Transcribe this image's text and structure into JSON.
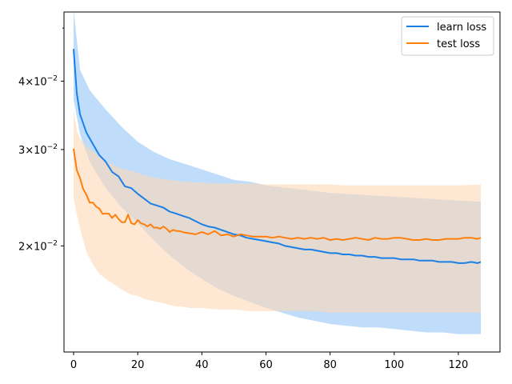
{
  "chart_data": {
    "type": "line",
    "y_scale": "log",
    "grid": false,
    "legend_placement": "top-right",
    "xlim": [
      -3,
      133
    ],
    "ylim": [
      0.0128,
      0.0535
    ],
    "x_ticks": [
      0,
      20,
      40,
      60,
      80,
      100,
      120
    ],
    "x_tick_labels": [
      "0",
      "20",
      "40",
      "60",
      "80",
      "100",
      "120"
    ],
    "y_major_ticks": [
      0.02,
      0.03,
      0.04
    ],
    "y_tick_labels": [
      {
        "mantissa": "2",
        "base": "10",
        "exp": "−2"
      },
      {
        "mantissa": "3",
        "base": "10",
        "exp": "−2"
      },
      {
        "mantissa": "4",
        "base": "10",
        "exp": "−2"
      }
    ],
    "y_minor_ticks": [
      0.05
    ],
    "series": [
      {
        "name": "learn loss",
        "color": "#1a80e6",
        "band_color": "#a9d2fa",
        "mean": [
          [
            0,
            0.0458
          ],
          [
            1,
            0.038
          ],
          [
            2,
            0.0348
          ],
          [
            4,
            0.0322
          ],
          [
            6,
            0.0307
          ],
          [
            8,
            0.0293
          ],
          [
            10,
            0.0285
          ],
          [
            12,
            0.0273
          ],
          [
            14,
            0.0268
          ],
          [
            16,
            0.0257
          ],
          [
            18,
            0.0255
          ],
          [
            20,
            0.0249
          ],
          [
            22,
            0.0244
          ],
          [
            24,
            0.0239
          ],
          [
            26,
            0.0237
          ],
          [
            28,
            0.0235
          ],
          [
            30,
            0.0231
          ],
          [
            32,
            0.0229
          ],
          [
            34,
            0.0227
          ],
          [
            36,
            0.0225
          ],
          [
            38,
            0.0222
          ],
          [
            40,
            0.0219
          ],
          [
            42,
            0.0217
          ],
          [
            44,
            0.0216
          ],
          [
            46,
            0.0214
          ],
          [
            48,
            0.0212
          ],
          [
            50,
            0.021
          ],
          [
            52,
            0.0209
          ],
          [
            54,
            0.0207
          ],
          [
            56,
            0.0206
          ],
          [
            58,
            0.0205
          ],
          [
            60,
            0.0204
          ],
          [
            62,
            0.0203
          ],
          [
            64,
            0.0202
          ],
          [
            66,
            0.02
          ],
          [
            68,
            0.0199
          ],
          [
            70,
            0.0198
          ],
          [
            72,
            0.0197
          ],
          [
            74,
            0.0197
          ],
          [
            76,
            0.0196
          ],
          [
            78,
            0.0195
          ],
          [
            80,
            0.0194
          ],
          [
            82,
            0.0194
          ],
          [
            84,
            0.0193
          ],
          [
            86,
            0.0193
          ],
          [
            88,
            0.0192
          ],
          [
            90,
            0.0192
          ],
          [
            92,
            0.0191
          ],
          [
            94,
            0.0191
          ],
          [
            96,
            0.019
          ],
          [
            98,
            0.019
          ],
          [
            100,
            0.019
          ],
          [
            102,
            0.0189
          ],
          [
            104,
            0.0189
          ],
          [
            106,
            0.0189
          ],
          [
            108,
            0.0188
          ],
          [
            110,
            0.0188
          ],
          [
            112,
            0.0188
          ],
          [
            114,
            0.0187
          ],
          [
            116,
            0.0187
          ],
          [
            118,
            0.0187
          ],
          [
            120,
            0.0186
          ],
          [
            122,
            0.0186
          ],
          [
            124,
            0.0187
          ],
          [
            126,
            0.0186
          ],
          [
            127,
            0.0187
          ]
        ],
        "upper": [
          [
            0,
            0.054
          ],
          [
            2,
            0.042
          ],
          [
            5,
            0.0385
          ],
          [
            10,
            0.0355
          ],
          [
            15,
            0.033
          ],
          [
            20,
            0.031
          ],
          [
            25,
            0.0297
          ],
          [
            30,
            0.0288
          ],
          [
            35,
            0.0282
          ],
          [
            40,
            0.0276
          ],
          [
            45,
            0.027
          ],
          [
            50,
            0.0264
          ],
          [
            55,
            0.0262
          ],
          [
            60,
            0.0258
          ],
          [
            65,
            0.0256
          ],
          [
            70,
            0.0254
          ],
          [
            75,
            0.0252
          ],
          [
            80,
            0.025
          ],
          [
            85,
            0.0249
          ],
          [
            90,
            0.0248
          ],
          [
            95,
            0.0247
          ],
          [
            100,
            0.0246
          ],
          [
            105,
            0.0245
          ],
          [
            110,
            0.0244
          ],
          [
            115,
            0.0243
          ],
          [
            120,
            0.0242
          ],
          [
            127,
            0.0241
          ]
        ],
        "lower": [
          [
            0,
            0.037
          ],
          [
            2,
            0.032
          ],
          [
            5,
            0.0285
          ],
          [
            10,
            0.0255
          ],
          [
            15,
            0.0235
          ],
          [
            20,
            0.022
          ],
          [
            25,
            0.0205
          ],
          [
            30,
            0.0192
          ],
          [
            35,
            0.0182
          ],
          [
            40,
            0.0174
          ],
          [
            45,
            0.0167
          ],
          [
            50,
            0.0162
          ],
          [
            55,
            0.0158
          ],
          [
            60,
            0.0154
          ],
          [
            65,
            0.0151
          ],
          [
            70,
            0.0148
          ],
          [
            75,
            0.0146
          ],
          [
            80,
            0.0144
          ],
          [
            85,
            0.0143
          ],
          [
            90,
            0.0142
          ],
          [
            95,
            0.0142
          ],
          [
            100,
            0.0141
          ],
          [
            105,
            0.014
          ],
          [
            110,
            0.0139
          ],
          [
            115,
            0.0139
          ],
          [
            120,
            0.0138
          ],
          [
            127,
            0.0138
          ]
        ]
      },
      {
        "name": "test loss",
        "color": "#ff7f0e",
        "band_color": "#ffd9b5",
        "mean": [
          [
            0,
            0.0301
          ],
          [
            1,
            0.0275
          ],
          [
            2,
            0.0266
          ],
          [
            3,
            0.0254
          ],
          [
            4,
            0.0248
          ],
          [
            5,
            0.024
          ],
          [
            6,
            0.024
          ],
          [
            7,
            0.0236
          ],
          [
            8,
            0.0234
          ],
          [
            9,
            0.0229
          ],
          [
            10,
            0.0229
          ],
          [
            11,
            0.0229
          ],
          [
            12,
            0.0225
          ],
          [
            13,
            0.0228
          ],
          [
            14,
            0.0224
          ],
          [
            15,
            0.0221
          ],
          [
            16,
            0.0221
          ],
          [
            17,
            0.0228
          ],
          [
            18,
            0.022
          ],
          [
            19,
            0.0219
          ],
          [
            20,
            0.0223
          ],
          [
            21,
            0.022
          ],
          [
            22,
            0.0219
          ],
          [
            23,
            0.0217
          ],
          [
            24,
            0.0219
          ],
          [
            25,
            0.0216
          ],
          [
            26,
            0.0216
          ],
          [
            27,
            0.0215
          ],
          [
            28,
            0.0217
          ],
          [
            29,
            0.0215
          ],
          [
            30,
            0.0212
          ],
          [
            31,
            0.0214
          ],
          [
            32,
            0.0213
          ],
          [
            33,
            0.0213
          ],
          [
            34,
            0.0212
          ],
          [
            36,
            0.0211
          ],
          [
            38,
            0.021
          ],
          [
            40,
            0.0212
          ],
          [
            42,
            0.021
          ],
          [
            44,
            0.0213
          ],
          [
            46,
            0.0209
          ],
          [
            48,
            0.021
          ],
          [
            50,
            0.0208
          ],
          [
            52,
            0.021
          ],
          [
            54,
            0.0209
          ],
          [
            56,
            0.0208
          ],
          [
            58,
            0.0208
          ],
          [
            60,
            0.0208
          ],
          [
            62,
            0.0207
          ],
          [
            64,
            0.0208
          ],
          [
            66,
            0.0207
          ],
          [
            68,
            0.0206
          ],
          [
            70,
            0.0207
          ],
          [
            72,
            0.0206
          ],
          [
            74,
            0.0207
          ],
          [
            76,
            0.0206
          ],
          [
            78,
            0.0207
          ],
          [
            80,
            0.0205
          ],
          [
            82,
            0.0206
          ],
          [
            84,
            0.0205
          ],
          [
            86,
            0.0206
          ],
          [
            88,
            0.0207
          ],
          [
            90,
            0.0206
          ],
          [
            92,
            0.0205
          ],
          [
            94,
            0.0207
          ],
          [
            96,
            0.0206
          ],
          [
            98,
            0.0206
          ],
          [
            100,
            0.0207
          ],
          [
            102,
            0.0207
          ],
          [
            104,
            0.0206
          ],
          [
            106,
            0.0205
          ],
          [
            108,
            0.0205
          ],
          [
            110,
            0.0206
          ],
          [
            112,
            0.0205
          ],
          [
            114,
            0.0205
          ],
          [
            116,
            0.0206
          ],
          [
            118,
            0.0206
          ],
          [
            120,
            0.0206
          ],
          [
            122,
            0.0207
          ],
          [
            124,
            0.0207
          ],
          [
            126,
            0.0206
          ],
          [
            127,
            0.0207
          ]
        ],
        "upper": [
          [
            0,
            0.0355
          ],
          [
            1,
            0.0325
          ],
          [
            2,
            0.0315
          ],
          [
            3,
            0.031
          ],
          [
            4,
            0.0303
          ],
          [
            6,
            0.0298
          ],
          [
            8,
            0.0292
          ],
          [
            10,
            0.0285
          ],
          [
            12,
            0.0282
          ],
          [
            14,
            0.0278
          ],
          [
            16,
            0.0276
          ],
          [
            18,
            0.0274
          ],
          [
            20,
            0.0272
          ],
          [
            22,
            0.0269
          ],
          [
            24,
            0.0268
          ],
          [
            26,
            0.0266
          ],
          [
            28,
            0.0265
          ],
          [
            30,
            0.0264
          ],
          [
            32,
            0.0263
          ],
          [
            34,
            0.0262
          ],
          [
            36,
            0.0262
          ],
          [
            38,
            0.0261
          ],
          [
            40,
            0.0261
          ],
          [
            45,
            0.026
          ],
          [
            50,
            0.026
          ],
          [
            55,
            0.026
          ],
          [
            60,
            0.0259
          ],
          [
            65,
            0.0259
          ],
          [
            70,
            0.0259
          ],
          [
            75,
            0.0259
          ],
          [
            80,
            0.0259
          ],
          [
            85,
            0.0258
          ],
          [
            90,
            0.0258
          ],
          [
            95,
            0.0258
          ],
          [
            100,
            0.0258
          ],
          [
            105,
            0.0258
          ],
          [
            110,
            0.0258
          ],
          [
            115,
            0.0258
          ],
          [
            120,
            0.0258
          ],
          [
            127,
            0.0259
          ]
        ],
        "lower": [
          [
            0,
            0.0245
          ],
          [
            1,
            0.0228
          ],
          [
            2,
            0.0215
          ],
          [
            3,
            0.0205
          ],
          [
            4,
            0.0195
          ],
          [
            6,
            0.0185
          ],
          [
            8,
            0.0178
          ],
          [
            10,
            0.0174
          ],
          [
            12,
            0.0171
          ],
          [
            14,
            0.0168
          ],
          [
            16,
            0.0165
          ],
          [
            18,
            0.0163
          ],
          [
            20,
            0.0162
          ],
          [
            22,
            0.016
          ],
          [
            24,
            0.0159
          ],
          [
            26,
            0.0158
          ],
          [
            28,
            0.0157
          ],
          [
            30,
            0.0156
          ],
          [
            32,
            0.0155
          ],
          [
            34,
            0.0155
          ],
          [
            36,
            0.0154
          ],
          [
            38,
            0.0154
          ],
          [
            40,
            0.0154
          ],
          [
            45,
            0.0153
          ],
          [
            50,
            0.0153
          ],
          [
            55,
            0.0152
          ],
          [
            60,
            0.0152
          ],
          [
            65,
            0.0152
          ],
          [
            70,
            0.0152
          ],
          [
            75,
            0.0152
          ],
          [
            80,
            0.0151
          ],
          [
            85,
            0.0151
          ],
          [
            90,
            0.0151
          ],
          [
            95,
            0.0151
          ],
          [
            100,
            0.0151
          ],
          [
            105,
            0.0151
          ],
          [
            110,
            0.0151
          ],
          [
            115,
            0.0151
          ],
          [
            120,
            0.0151
          ],
          [
            127,
            0.0151
          ]
        ]
      }
    ]
  }
}
